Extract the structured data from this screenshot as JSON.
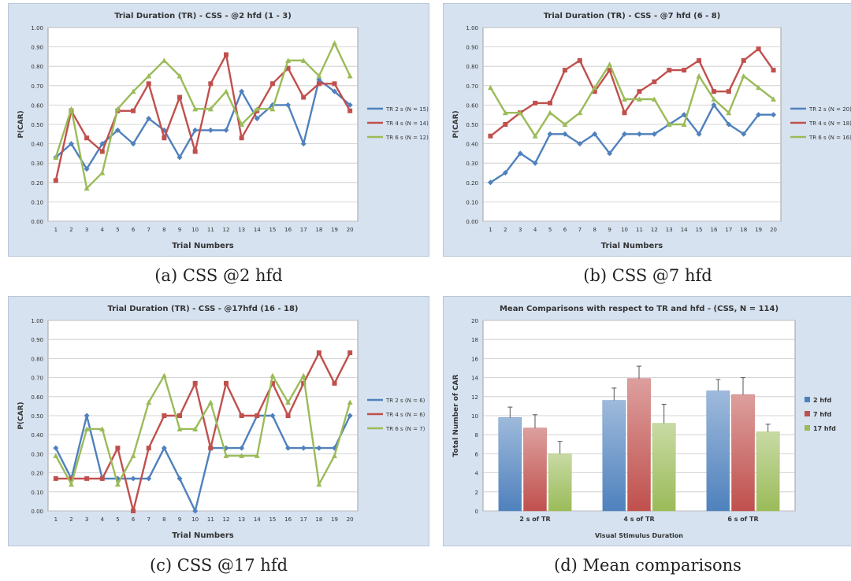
{
  "chart_data": [
    {
      "type": "line",
      "title": "Trial Duration (TR) - CSS - @2 hfd (1 - 3)",
      "xlabel": "Trial Numbers",
      "ylabel": "P(CAR)",
      "x": [
        1,
        2,
        3,
        4,
        5,
        6,
        7,
        8,
        9,
        10,
        11,
        12,
        13,
        14,
        15,
        16,
        17,
        18,
        19,
        20
      ],
      "ylim": [
        0,
        1
      ],
      "yticks": [
        "0.00",
        "0.10",
        "0.20",
        "0.30",
        "0.40",
        "0.50",
        "0.60",
        "0.70",
        "0.80",
        "0.90",
        "1.00"
      ],
      "grid": true,
      "legend": "right",
      "series": [
        {
          "name": "TR 2 s (N = 15)",
          "color": "#4f81bd",
          "values": [
            0.33,
            0.4,
            0.27,
            0.4,
            0.47,
            0.4,
            0.53,
            0.47,
            0.33,
            0.47,
            0.47,
            0.47,
            0.67,
            0.53,
            0.6,
            0.6,
            0.4,
            0.73,
            0.67,
            0.6
          ]
        },
        {
          "name": "TR 4 s (N = 14)",
          "color": "#c0504d",
          "values": [
            0.21,
            0.57,
            0.43,
            0.36,
            0.57,
            0.57,
            0.71,
            0.43,
            0.64,
            0.36,
            0.71,
            0.86,
            0.43,
            0.57,
            0.71,
            0.79,
            0.64,
            0.71,
            0.71,
            0.57
          ]
        },
        {
          "name": "TR 6 s (N = 12)",
          "color": "#9bbb59",
          "values": [
            0.33,
            0.58,
            0.17,
            0.25,
            0.58,
            0.67,
            0.75,
            0.83,
            0.75,
            0.58,
            0.58,
            0.67,
            0.5,
            0.58,
            0.58,
            0.83,
            0.83,
            0.75,
            0.92,
            0.75
          ]
        }
      ]
    },
    {
      "type": "line",
      "title": "Trial Duration (TR) - CSS - @7 hfd (6 - 8)",
      "xlabel": "Trial Numbers",
      "ylabel": "P(CAR)",
      "x": [
        1,
        2,
        3,
        4,
        5,
        6,
        7,
        8,
        9,
        10,
        11,
        12,
        13,
        14,
        15,
        16,
        17,
        18,
        19,
        20
      ],
      "ylim": [
        0,
        1
      ],
      "yticks": [
        "0.00",
        "0.10",
        "0.20",
        "0.30",
        "0.40",
        "0.50",
        "0.60",
        "0.70",
        "0.80",
        "0.90",
        "1.00"
      ],
      "grid": true,
      "legend": "right",
      "series": [
        {
          "name": "TR 2 s (N = 20)",
          "color": "#4f81bd",
          "values": [
            0.2,
            0.25,
            0.35,
            0.3,
            0.45,
            0.45,
            0.4,
            0.45,
            0.35,
            0.45,
            0.45,
            0.45,
            0.5,
            0.55,
            0.45,
            0.6,
            0.5,
            0.45,
            0.55,
            0.55
          ]
        },
        {
          "name": "TR 4 s (N = 18)",
          "color": "#c0504d",
          "values": [
            0.44,
            0.5,
            0.56,
            0.61,
            0.61,
            0.78,
            0.83,
            0.67,
            0.78,
            0.56,
            0.67,
            0.72,
            0.78,
            0.78,
            0.83,
            0.67,
            0.67,
            0.83,
            0.89,
            0.78
          ]
        },
        {
          "name": "TR 6 s (N = 16)",
          "color": "#9bbb59",
          "values": [
            0.69,
            0.56,
            0.56,
            0.44,
            0.56,
            0.5,
            0.56,
            0.69,
            0.81,
            0.63,
            0.63,
            0.63,
            0.5,
            0.5,
            0.75,
            0.63,
            0.56,
            0.75,
            0.69,
            0.63
          ]
        }
      ]
    },
    {
      "type": "line",
      "title": "Trial Duration (TR) - CSS - @17hfd (16 - 18)",
      "xlabel": "Trial Numbers",
      "ylabel": "P(CAR)",
      "x": [
        1,
        2,
        3,
        4,
        5,
        6,
        7,
        8,
        9,
        10,
        11,
        12,
        13,
        14,
        15,
        16,
        17,
        18,
        19,
        20
      ],
      "ylim": [
        0,
        1
      ],
      "yticks": [
        "0.00",
        "0.10",
        "0.20",
        "0.30",
        "0.40",
        "0.50",
        "0.60",
        "0.70",
        "0.80",
        "0.90",
        "1.00"
      ],
      "grid": true,
      "legend": "right",
      "series": [
        {
          "name": "TR 2 s (N = 6)",
          "color": "#4f81bd",
          "values": [
            0.33,
            0.17,
            0.5,
            0.17,
            0.17,
            0.17,
            0.17,
            0.33,
            0.17,
            0.0,
            0.33,
            0.33,
            0.33,
            0.5,
            0.5,
            0.33,
            0.33,
            0.33,
            0.33,
            0.5
          ]
        },
        {
          "name": "TR 4 s (N = 6)",
          "color": "#c0504d",
          "values": [
            0.17,
            0.17,
            0.17,
            0.17,
            0.33,
            0.0,
            0.33,
            0.5,
            0.5,
            0.67,
            0.33,
            0.67,
            0.5,
            0.5,
            0.67,
            0.5,
            0.67,
            0.83,
            0.67,
            0.83
          ]
        },
        {
          "name": "TR 6 s (N = 7)",
          "color": "#9bbb59",
          "values": [
            0.29,
            0.14,
            0.43,
            0.43,
            0.14,
            0.29,
            0.57,
            0.71,
            0.43,
            0.43,
            0.57,
            0.29,
            0.29,
            0.29,
            0.71,
            0.57,
            0.71,
            0.14,
            0.29,
            0.57
          ]
        }
      ]
    },
    {
      "type": "bar",
      "title": "Mean Comparisons with respect to TR and hfd - (CSS, N = 114)",
      "xlabel": "Visual Stimulus Duration",
      "ylabel": "Total Number of CAR",
      "categories": [
        "2 s of TR",
        "4 s of TR",
        "6 s of TR"
      ],
      "ylim": [
        0,
        20
      ],
      "yticks": [
        "0",
        "2",
        "4",
        "6",
        "8",
        "10",
        "12",
        "14",
        "16",
        "18",
        "20"
      ],
      "grid": true,
      "legend": "right",
      "series": [
        {
          "name": "2 hfd",
          "color": "#4f81bd",
          "values": [
            9.8,
            11.6,
            12.6
          ],
          "errors": [
            1.1,
            1.3,
            1.2
          ]
        },
        {
          "name": "7 hfd",
          "color": "#c0504d",
          "values": [
            8.7,
            13.9,
            12.2
          ],
          "errors": [
            1.4,
            1.3,
            1.8
          ]
        },
        {
          "name": "17 hfd",
          "color": "#9bbb59",
          "values": [
            6.0,
            9.2,
            8.3
          ],
          "errors": [
            1.3,
            2.0,
            0.8
          ]
        }
      ]
    }
  ],
  "captions": [
    "(a) CSS @2 hfd",
    "(b) CSS @7 hfd",
    "(c) CSS @17 hfd",
    "(d) Mean comparisons"
  ]
}
